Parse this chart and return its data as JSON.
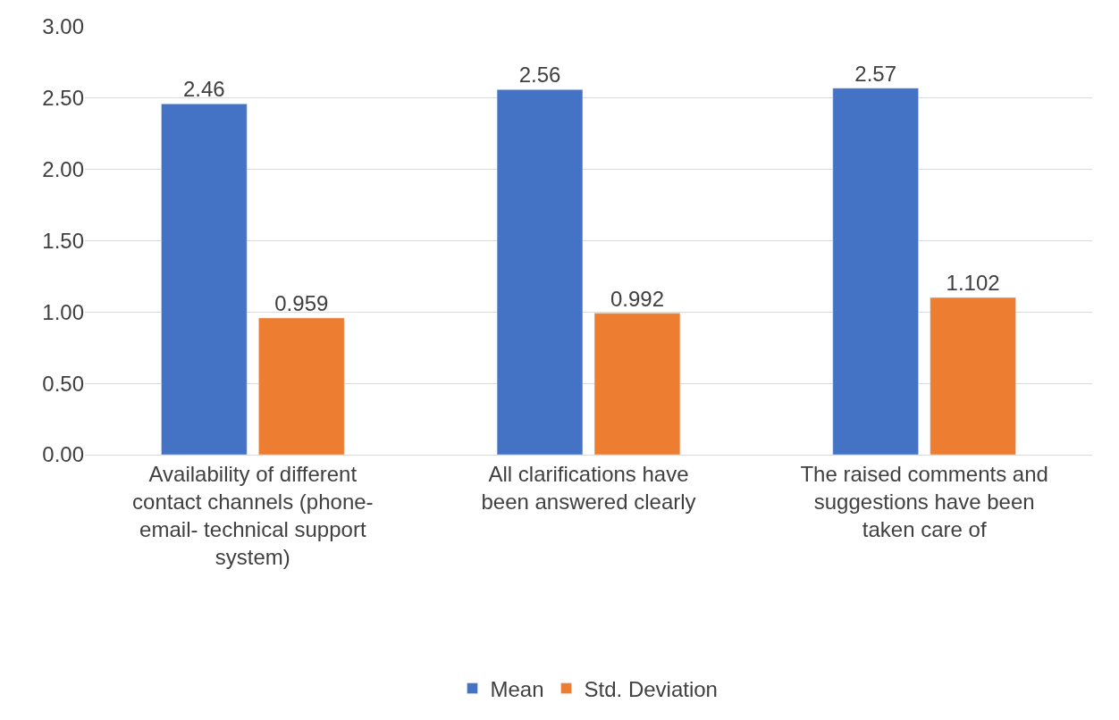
{
  "chart_data": {
    "type": "bar",
    "categories": [
      "Availability of different\ncontact channels (phone-\nemail- technical support\nsystem)",
      "All clarifications have\nbeen answered clearly",
      "The raised comments and\nsuggestions have been\ntaken care of"
    ],
    "series": [
      {
        "name": "Mean",
        "color": "#4472c4",
        "values": [
          2.46,
          2.56,
          2.57
        ]
      },
      {
        "name": "Std. Deviation",
        "color": "#ed7d31",
        "values": [
          0.959,
          0.992,
          1.102
        ]
      }
    ],
    "ylim": [
      0,
      3
    ],
    "yticks": [
      {
        "value": 0,
        "label": "0.00"
      },
      {
        "value": 0.5,
        "label": "0.50"
      },
      {
        "value": 1,
        "label": "1.00"
      },
      {
        "value": 1.5,
        "label": "1.50"
      },
      {
        "value": 2,
        "label": "2.00"
      },
      {
        "value": 2.5,
        "label": "2.50"
      },
      {
        "value": 3,
        "label": "3.00"
      }
    ],
    "grid": "y",
    "legend": "bottom",
    "data_labels": true
  }
}
